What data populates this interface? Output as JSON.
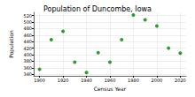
{
  "chart_data": {
    "type": "scatter",
    "title": "Population of Duncombe, Iowa",
    "x_label": "Census Year",
    "y_label": "Population",
    "x": [
      1900,
      1910,
      1920,
      1930,
      1940,
      1950,
      1960,
      1970,
      1980,
      1990,
      2000,
      2010,
      2020
    ],
    "values": [
      355,
      446,
      472,
      377,
      345,
      406,
      377,
      446,
      522,
      507,
      488,
      420,
      405
    ],
    "color": "#008000",
    "marker": "circle",
    "xlim": [
      1895,
      2025
    ],
    "xticks": [
      1900,
      1920,
      1940,
      1960,
      1980,
      2000,
      2020
    ],
    "ylim": [
      335,
      530
    ],
    "yticks": [
      340,
      360,
      380,
      400,
      420,
      440,
      460,
      480,
      500,
      520
    ],
    "grid": true
  }
}
